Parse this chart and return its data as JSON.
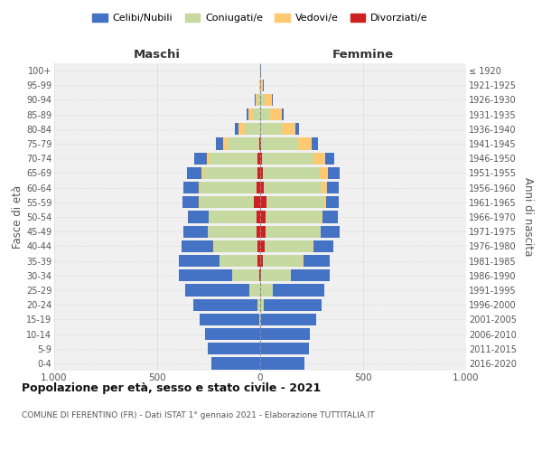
{
  "age_groups": [
    "0-4",
    "5-9",
    "10-14",
    "15-19",
    "20-24",
    "25-29",
    "30-34",
    "35-39",
    "40-44",
    "45-49",
    "50-54",
    "55-59",
    "60-64",
    "65-69",
    "70-74",
    "75-79",
    "80-84",
    "85-89",
    "90-94",
    "95-99",
    "100+"
  ],
  "birth_years": [
    "2016-2020",
    "2011-2015",
    "2006-2010",
    "2001-2005",
    "1996-2000",
    "1991-1995",
    "1986-1990",
    "1981-1985",
    "1976-1980",
    "1971-1975",
    "1966-1970",
    "1961-1965",
    "1956-1960",
    "1951-1955",
    "1946-1950",
    "1941-1945",
    "1936-1940",
    "1931-1935",
    "1926-1930",
    "1921-1925",
    "≤ 1920"
  ],
  "colors": {
    "celibe": "#4472c4",
    "coniugato": "#c5d9a0",
    "vedovo": "#ffc972",
    "divorziato": "#cc2222"
  },
  "males": {
    "celibe": [
      235,
      255,
      265,
      290,
      310,
      310,
      260,
      195,
      155,
      120,
      100,
      80,
      75,
      70,
      60,
      35,
      18,
      10,
      5,
      2,
      2
    ],
    "coniugato": [
      0,
      0,
      2,
      5,
      15,
      50,
      130,
      185,
      210,
      235,
      230,
      265,
      275,
      265,
      235,
      155,
      75,
      35,
      15,
      2,
      0
    ],
    "vedovo": [
      0,
      0,
      0,
      0,
      0,
      0,
      1,
      2,
      2,
      2,
      3,
      3,
      5,
      10,
      12,
      18,
      30,
      20,
      8,
      2,
      0
    ],
    "divorziato": [
      0,
      0,
      0,
      0,
      0,
      2,
      5,
      12,
      15,
      18,
      18,
      30,
      18,
      12,
      12,
      5,
      0,
      0,
      0,
      0,
      0
    ]
  },
  "females": {
    "celibe": [
      215,
      235,
      240,
      265,
      280,
      250,
      185,
      130,
      100,
      90,
      75,
      60,
      60,
      55,
      45,
      30,
      20,
      10,
      5,
      2,
      2
    ],
    "coniugato": [
      0,
      0,
      2,
      5,
      18,
      60,
      145,
      195,
      235,
      265,
      270,
      280,
      280,
      275,
      250,
      180,
      105,
      50,
      20,
      5,
      0
    ],
    "vedovo": [
      0,
      0,
      0,
      0,
      0,
      0,
      1,
      2,
      2,
      3,
      5,
      12,
      25,
      40,
      55,
      65,
      65,
      55,
      35,
      10,
      2
    ],
    "divorziato": [
      0,
      0,
      0,
      0,
      0,
      2,
      5,
      12,
      20,
      28,
      28,
      30,
      18,
      15,
      10,
      5,
      0,
      0,
      0,
      0,
      0
    ]
  },
  "title": "Popolazione per età, sesso e stato civile - 2021",
  "subtitle": "COMUNE DI FERENTINO (FR) - Dati ISTAT 1° gennaio 2021 - Elaborazione TUTTITALIA.IT",
  "xlabel_left": "Maschi",
  "xlabel_right": "Femmine",
  "ylabel_left": "Fasce di età",
  "ylabel_right": "Anni di nascita",
  "xlim": 1000,
  "legend_labels": [
    "Celibi/Nubili",
    "Coniugati/e",
    "Vedovi/e",
    "Divorziati/e"
  ],
  "bg_color": "#ffffff",
  "plot_bg": "#f0f0f0",
  "grid_color": "#dddddd"
}
